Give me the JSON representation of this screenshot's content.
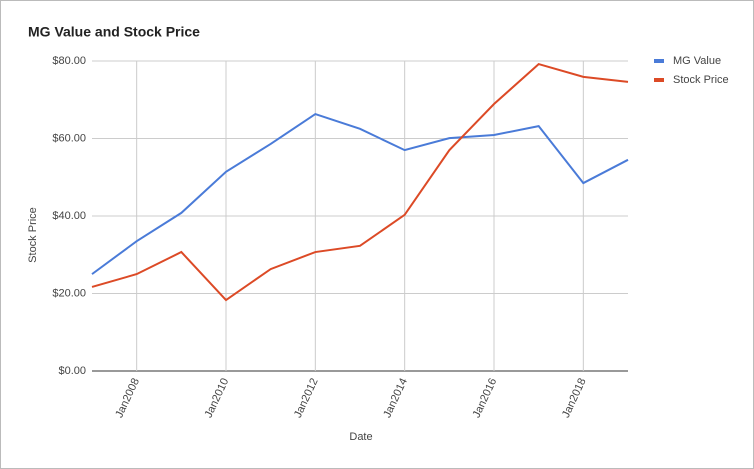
{
  "chart_data": {
    "type": "line",
    "title": "MG Value and Stock Price",
    "x_label": "Date",
    "y_label": "Stock Price",
    "x": [
      "2007-01",
      "2008-01",
      "2009-01",
      "2010-01",
      "2011-01",
      "2012-01",
      "2013-01",
      "2014-01",
      "2015-01",
      "2016-01",
      "2017-01",
      "2018-01",
      "2019-01"
    ],
    "series": [
      {
        "name": "MG Value",
        "color": "#4a7bd8",
        "values": [
          25.0,
          33.5,
          40.8,
          51.4,
          58.6,
          66.3,
          62.5,
          57.0,
          60.1,
          60.9,
          63.2,
          48.5,
          54.5
        ]
      },
      {
        "name": "Stock Price",
        "color": "#dc4a26",
        "values": [
          21.7,
          25.0,
          30.7,
          18.3,
          26.3,
          30.7,
          32.3,
          40.3,
          57.0,
          68.9,
          79.2,
          75.9,
          74.6
        ]
      }
    ],
    "xlim": [
      "2007-01",
      "2019-01"
    ],
    "xticks": [
      {
        "value": "2008-01",
        "label": "Jan2008"
      },
      {
        "value": "2010-01",
        "label": "Jan2010"
      },
      {
        "value": "2012-01",
        "label": "Jan2012"
      },
      {
        "value": "2014-01",
        "label": "Jan2014"
      },
      {
        "value": "2016-01",
        "label": "Jan2016"
      },
      {
        "value": "2018-01",
        "label": "Jan2018"
      }
    ],
    "ylim": [
      0,
      80
    ],
    "yticks": [
      {
        "value": 0,
        "label": "$0.00"
      },
      {
        "value": 20,
        "label": "$20.00"
      },
      {
        "value": 40,
        "label": "$40.00"
      },
      {
        "value": 60,
        "label": "$60.00"
      },
      {
        "value": 80,
        "label": "$80.00"
      }
    ],
    "grid": true,
    "legend": "top-right"
  }
}
